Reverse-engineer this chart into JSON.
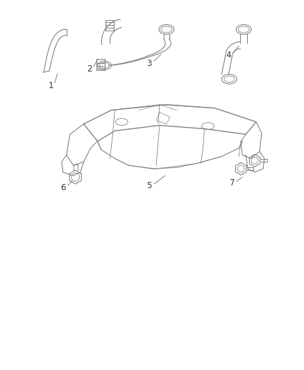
{
  "background_color": "#ffffff",
  "line_color": "#b0b0b0",
  "dark_line": "#808080",
  "label_color": "#333333",
  "fig_width": 4.38,
  "fig_height": 5.33,
  "dpi": 100
}
